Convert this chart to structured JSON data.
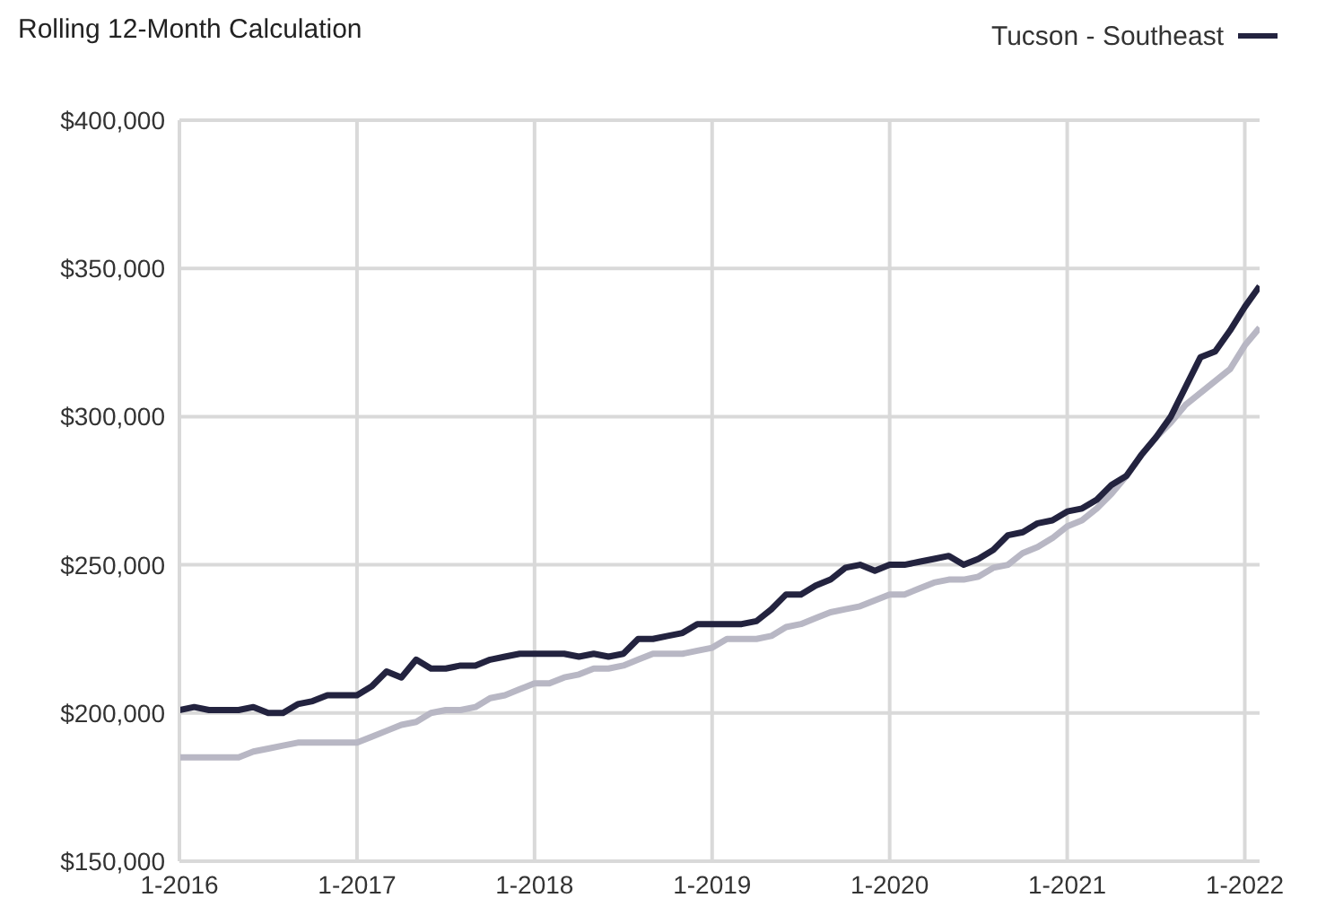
{
  "chart_data": {
    "type": "line",
    "title": "Rolling 12-Month Calculation",
    "x": [
      "2016-01",
      "2016-02",
      "2016-03",
      "2016-04",
      "2016-05",
      "2016-06",
      "2016-07",
      "2016-08",
      "2016-09",
      "2016-10",
      "2016-11",
      "2016-12",
      "2017-01",
      "2017-02",
      "2017-03",
      "2017-04",
      "2017-05",
      "2017-06",
      "2017-07",
      "2017-08",
      "2017-09",
      "2017-10",
      "2017-11",
      "2017-12",
      "2018-01",
      "2018-02",
      "2018-03",
      "2018-04",
      "2018-05",
      "2018-06",
      "2018-07",
      "2018-08",
      "2018-09",
      "2018-10",
      "2018-11",
      "2018-12",
      "2019-01",
      "2019-02",
      "2019-03",
      "2019-04",
      "2019-05",
      "2019-06",
      "2019-07",
      "2019-08",
      "2019-09",
      "2019-10",
      "2019-11",
      "2019-12",
      "2020-01",
      "2020-02",
      "2020-03",
      "2020-04",
      "2020-05",
      "2020-06",
      "2020-07",
      "2020-08",
      "2020-09",
      "2020-10",
      "2020-11",
      "2020-12",
      "2021-01",
      "2021-02",
      "2021-03",
      "2021-04",
      "2021-05",
      "2021-06",
      "2021-07",
      "2021-08",
      "2021-09",
      "2021-10",
      "2021-11",
      "2021-12",
      "2022-01",
      "2022-02"
    ],
    "series": [
      {
        "color": "#b8b7c4",
        "values": [
          185000,
          185000,
          185000,
          185000,
          185000,
          187000,
          188000,
          189000,
          190000,
          190000,
          190000,
          190000,
          190000,
          192000,
          194000,
          196000,
          197000,
          200000,
          201000,
          201000,
          202000,
          205000,
          206000,
          208000,
          210000,
          210000,
          212000,
          213000,
          215000,
          215000,
          216000,
          218000,
          220000,
          220000,
          220000,
          221000,
          222000,
          225000,
          225000,
          225000,
          226000,
          229000,
          230000,
          232000,
          234000,
          235000,
          236000,
          238000,
          240000,
          240000,
          242000,
          244000,
          245000,
          245000,
          246000,
          249000,
          250000,
          254000,
          256000,
          259000,
          263000,
          265000,
          269000,
          274000,
          280000,
          287000,
          293000,
          298000,
          304000,
          308000,
          312000,
          316000,
          324000,
          330000
        ]
      },
      {
        "name": "Tucson - Southeast",
        "color": "#23233f",
        "values": [
          201000,
          202000,
          201000,
          201000,
          201000,
          202000,
          200000,
          200000,
          203000,
          204000,
          206000,
          206000,
          206000,
          209000,
          214000,
          212000,
          218000,
          215000,
          215000,
          216000,
          216000,
          218000,
          219000,
          220000,
          220000,
          220000,
          220000,
          219000,
          220000,
          219000,
          220000,
          225000,
          225000,
          226000,
          227000,
          230000,
          230000,
          230000,
          230000,
          231000,
          235000,
          240000,
          240000,
          243000,
          245000,
          249000,
          250000,
          248000,
          250000,
          250000,
          251000,
          252000,
          253000,
          250000,
          252000,
          255000,
          260000,
          261000,
          264000,
          265000,
          268000,
          269000,
          272000,
          277000,
          280000,
          287000,
          293000,
          300000,
          310000,
          320000,
          322000,
          329000,
          337000,
          344000
        ]
      }
    ],
    "xlim": [
      "2016-01",
      "2022-02"
    ],
    "xticks": [
      {
        "value": "2016-01",
        "label": "1-2016"
      },
      {
        "value": "2017-01",
        "label": "1-2017"
      },
      {
        "value": "2018-01",
        "label": "1-2018"
      },
      {
        "value": "2019-01",
        "label": "1-2019"
      },
      {
        "value": "2020-01",
        "label": "1-2020"
      },
      {
        "value": "2021-01",
        "label": "1-2021"
      },
      {
        "value": "2022-01",
        "label": "1-2022"
      }
    ],
    "ylim": [
      150000,
      400000
    ],
    "yticks": [
      {
        "value": 150000,
        "label": "$150,000"
      },
      {
        "value": 200000,
        "label": "$200,000"
      },
      {
        "value": 250000,
        "label": "$250,000"
      },
      {
        "value": 300000,
        "label": "$300,000"
      },
      {
        "value": 350000,
        "label": "$350,000"
      },
      {
        "value": 400000,
        "label": "$400,000"
      }
    ],
    "grid": true,
    "legend": "top right"
  }
}
